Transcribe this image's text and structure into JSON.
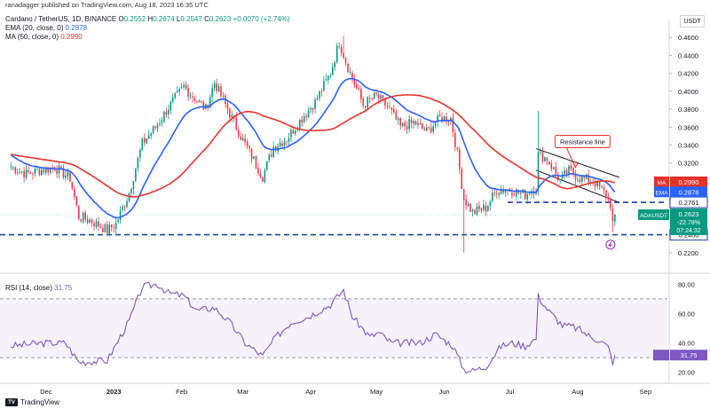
{
  "header": {
    "publisher": "ranadagger published on TradingView.com, Aug 18, 2023 16:35 UTC",
    "currency": "USDT",
    "symbol_line": "Cardano / TetherUS, 1D, BINANCE",
    "ohlc": {
      "o_label": "O",
      "o": "0.2552",
      "h_label": "H",
      "h": "0.2674",
      "l_label": "L",
      "l": "0.2547",
      "c_label": "C",
      "c": "0.2623",
      "change": "+0.0070 (+2.74%)"
    },
    "ema_line": "EMA (20, close, 0)",
    "ema_value": "0.2878",
    "ma_line": "MA (50, close, 0)",
    "ma_value": "0.2990",
    "rsi_line": "RSI (14, close)",
    "rsi_value": "31.75"
  },
  "footer": {
    "brand": "TradingView",
    "logo_text": "TV"
  },
  "colors": {
    "up": "#089981",
    "down": "#f23645",
    "ema": "#2962ff",
    "ma": "#e5332a",
    "rsi": "#7e57c2",
    "level": "#1e3fad",
    "channel": "#131722"
  },
  "chart_data": {
    "type": "candlestick",
    "symbol": "ADAUSDT",
    "timeframe": "1D",
    "x_tick_labels": [
      "Dec",
      "2023",
      "Feb",
      "Mar",
      "Apr",
      "May",
      "Jun",
      "Jul",
      "Aug",
      "Sep"
    ],
    "x_tick_dates": [
      "2022-12-01",
      "2023-01-01",
      "2023-02-01",
      "2023-03-01",
      "2023-04-01",
      "2023-05-01",
      "2023-06-01",
      "2023-07-01",
      "2023-08-01",
      "2023-09-01"
    ],
    "price_axis": {
      "min": 0.2,
      "max": 0.48,
      "ticks": [
        "0.2200",
        "0.2400",
        "0.2600",
        "0.2800",
        "0.3000",
        "0.3200",
        "0.3400",
        "0.3600",
        "0.3800",
        "0.4000",
        "0.4200",
        "0.4400",
        "0.4600"
      ]
    },
    "rsi_axis": {
      "min": 15,
      "max": 85,
      "ticks": [
        "20.00",
        "40.00",
        "60.00",
        "80.00"
      ],
      "bands": [
        30,
        70
      ]
    },
    "price_keypoints": [
      [
        "2022-11-15",
        0.3155
      ],
      [
        "2022-11-22",
        0.308
      ],
      [
        "2022-11-30",
        0.313
      ],
      [
        "2022-12-05",
        0.315
      ],
      [
        "2022-12-12",
        0.303
      ],
      [
        "2022-12-16",
        0.26
      ],
      [
        "2022-12-22",
        0.255
      ],
      [
        "2022-12-29",
        0.245
      ],
      [
        "2023-01-02",
        0.252
      ],
      [
        "2023-01-08",
        0.287
      ],
      [
        "2023-01-14",
        0.342
      ],
      [
        "2023-01-21",
        0.363
      ],
      [
        "2023-01-26",
        0.382
      ],
      [
        "2023-02-02",
        0.405
      ],
      [
        "2023-02-08",
        0.39
      ],
      [
        "2023-02-12",
        0.38
      ],
      [
        "2023-02-16",
        0.41
      ],
      [
        "2023-02-23",
        0.375
      ],
      [
        "2023-02-28",
        0.35
      ],
      [
        "2023-03-05",
        0.328
      ],
      [
        "2023-03-10",
        0.305
      ],
      [
        "2023-03-15",
        0.338
      ],
      [
        "2023-03-21",
        0.347
      ],
      [
        "2023-03-28",
        0.37
      ],
      [
        "2023-04-03",
        0.388
      ],
      [
        "2023-04-10",
        0.42
      ],
      [
        "2023-04-14",
        0.455
      ],
      [
        "2023-04-19",
        0.42
      ],
      [
        "2023-04-25",
        0.385
      ],
      [
        "2023-05-01",
        0.395
      ],
      [
        "2023-05-07",
        0.38
      ],
      [
        "2023-05-12",
        0.36
      ],
      [
        "2023-05-18",
        0.365
      ],
      [
        "2023-05-24",
        0.355
      ],
      [
        "2023-05-30",
        0.37
      ],
      [
        "2023-06-04",
        0.37
      ],
      [
        "2023-06-07",
        0.33
      ],
      [
        "2023-06-10",
        0.28
      ],
      [
        "2023-06-14",
        0.265
      ],
      [
        "2023-06-20",
        0.27
      ],
      [
        "2023-06-25",
        0.29
      ],
      [
        "2023-07-01",
        0.29
      ],
      [
        "2023-07-08",
        0.285
      ],
      [
        "2023-07-13",
        0.293
      ],
      [
        "2023-07-14",
        0.33
      ],
      [
        "2023-07-18",
        0.325
      ],
      [
        "2023-07-24",
        0.3
      ],
      [
        "2023-07-28",
        0.312
      ],
      [
        "2023-08-02",
        0.303
      ],
      [
        "2023-08-08",
        0.3
      ],
      [
        "2023-08-14",
        0.285
      ],
      [
        "2023-08-16",
        0.274
      ],
      [
        "2023-08-17",
        0.2553
      ],
      [
        "2023-08-18",
        0.2623
      ]
    ],
    "spikes": [
      {
        "date": "2023-06-10",
        "low": 0.22
      },
      {
        "date": "2023-07-14",
        "high": 0.378
      },
      {
        "date": "2023-04-16",
        "high": 0.462
      },
      {
        "date": "2023-08-17",
        "low": 0.243
      }
    ],
    "ema20": {
      "name": "EMA",
      "value_label": "0.2878"
    },
    "ma50": {
      "name": "MA",
      "value_label": "0.2990"
    },
    "horizontal_levels": [
      {
        "label": "0.2761",
        "value": 0.2761,
        "from": "2023-06-30"
      },
      {
        "label": "0.2400",
        "value": 0.24,
        "from": "2022-11-10"
      }
    ],
    "resistance_line": {
      "start": [
        "2023-07-13",
        0.336
      ],
      "end": [
        "2023-08-20",
        0.304
      ]
    },
    "support_line": {
      "start": [
        "2023-07-13",
        0.312
      ],
      "end": [
        "2023-08-20",
        0.276
      ]
    },
    "annotation": {
      "text": "Resistance line",
      "date": "2023-08-02",
      "value": 0.344,
      "arrow_to": [
        "2023-07-31",
        0.315
      ]
    },
    "last_price": {
      "label": "ADAUSDT",
      "value": 0.2623,
      "value_label": "0.2623",
      "change_label": "-22.78%",
      "countdown": "07:24:32"
    },
    "rsi_keypoints": [
      [
        "2022-11-15",
        38
      ],
      [
        "2022-11-30",
        40
      ],
      [
        "2022-12-10",
        40
      ],
      [
        "2022-12-16",
        27
      ],
      [
        "2022-12-29",
        28
      ],
      [
        "2023-01-08",
        55
      ],
      [
        "2023-01-14",
        78
      ],
      [
        "2023-01-21",
        80
      ],
      [
        "2023-01-26",
        74
      ],
      [
        "2023-02-02",
        72
      ],
      [
        "2023-02-08",
        62
      ],
      [
        "2023-02-16",
        64
      ],
      [
        "2023-02-23",
        54
      ],
      [
        "2023-03-02",
        40
      ],
      [
        "2023-03-10",
        31
      ],
      [
        "2023-03-16",
        44
      ],
      [
        "2023-03-23",
        54
      ],
      [
        "2023-03-31",
        58
      ],
      [
        "2023-04-10",
        66
      ],
      [
        "2023-04-16",
        76
      ],
      [
        "2023-04-20",
        58
      ],
      [
        "2023-04-28",
        44
      ],
      [
        "2023-05-02",
        47
      ],
      [
        "2023-05-08",
        40
      ],
      [
        "2023-05-14",
        40
      ],
      [
        "2023-05-21",
        40
      ],
      [
        "2023-05-28",
        46
      ],
      [
        "2023-06-05",
        38
      ],
      [
        "2023-06-10",
        22
      ],
      [
        "2023-06-14",
        21
      ],
      [
        "2023-06-20",
        24
      ],
      [
        "2023-06-27",
        38
      ],
      [
        "2023-07-02",
        40
      ],
      [
        "2023-07-08",
        38
      ],
      [
        "2023-07-13",
        43
      ],
      [
        "2023-07-14",
        72
      ],
      [
        "2023-07-18",
        63
      ],
      [
        "2023-07-25",
        52
      ],
      [
        "2023-07-30",
        51
      ],
      [
        "2023-08-02",
        49
      ],
      [
        "2023-08-07",
        44
      ],
      [
        "2023-08-11",
        42
      ],
      [
        "2023-08-15",
        37
      ],
      [
        "2023-08-17",
        27
      ],
      [
        "2023-08-18",
        31.75
      ]
    ]
  }
}
